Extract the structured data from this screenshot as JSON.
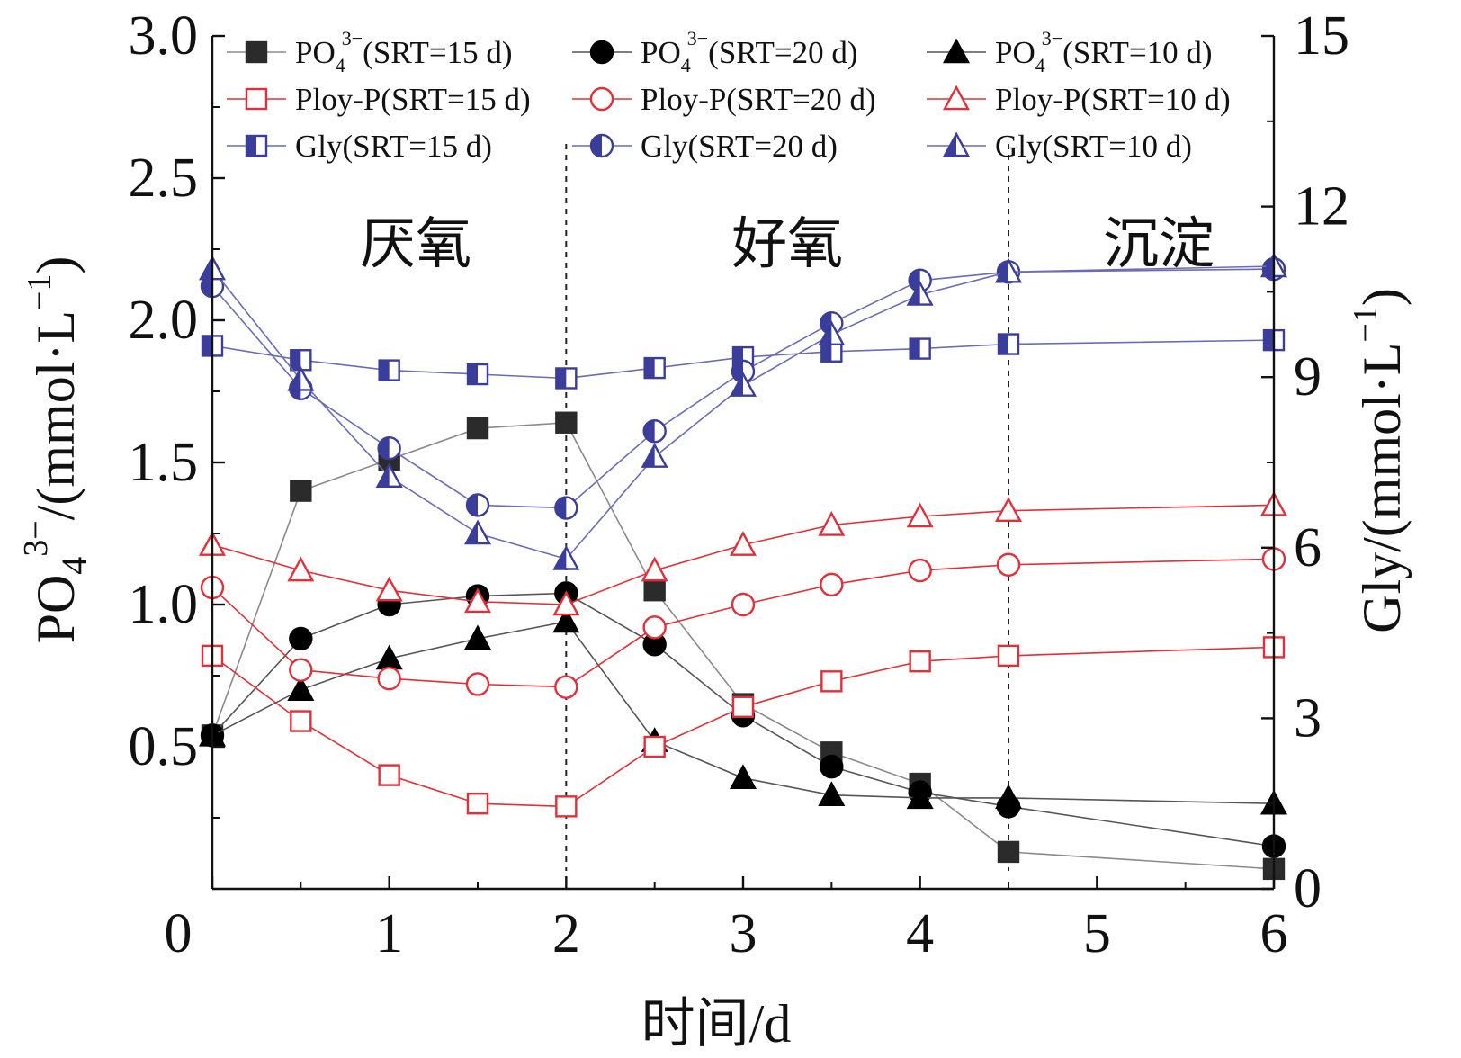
{
  "chart_data": {
    "type": "line",
    "x_axis": {
      "label": "时间/d",
      "range": [
        0,
        6
      ],
      "ticks": [
        0,
        1,
        2,
        3,
        4,
        5,
        6
      ]
    },
    "y_axis_left": {
      "label_main": "PO",
      "label_sub": "4",
      "label_sup": "3−",
      "label_unit": "/(mmol·L",
      "label_unit_sup": "−1",
      "label_close": ")",
      "range": [
        0,
        3.0
      ],
      "ticks": [
        0.5,
        1.0,
        1.5,
        2.0,
        2.5,
        3.0
      ],
      "tick_labels": [
        "0.5",
        "1.0",
        "1.5",
        "2.0",
        "2.5",
        "3.0"
      ]
    },
    "y_axis_right": {
      "label_main": "Gly/(mmol·L",
      "label_sup": "−1",
      "label_close": ")",
      "range": [
        0,
        15
      ],
      "ticks": [
        0,
        3,
        6,
        9,
        12,
        15
      ],
      "tick_labels": [
        "0",
        "3",
        "6",
        "9",
        "12",
        "15"
      ]
    },
    "origin_label": "0",
    "phases": [
      {
        "label": "厌氧",
        "x_center": 1.15
      },
      {
        "label": "好氧",
        "x_center": 3.25
      },
      {
        "label": "沉淀",
        "x_center": 5.35
      }
    ],
    "phase_boundaries": [
      2,
      4.5
    ],
    "series": [
      {
        "name": "PO4 3− (SRT=15 d)",
        "legend_main": "PO",
        "legend_sub": "4",
        "legend_sup": "3−",
        "legend_rest": "(SRT=15 d)",
        "axis": "left",
        "color": "#2b2b2b",
        "line_color": "#8a8a8a",
        "marker": "square-filled",
        "points": [
          [
            0,
            0.54
          ],
          [
            0.5,
            1.4
          ],
          [
            1,
            1.51
          ],
          [
            1.5,
            1.62
          ],
          [
            2,
            1.64
          ],
          [
            2.5,
            1.05
          ],
          [
            3,
            0.65
          ],
          [
            3.5,
            0.48
          ],
          [
            4,
            0.37
          ],
          [
            4.5,
            0.13
          ],
          [
            6,
            0.07
          ]
        ]
      },
      {
        "name": "PO4 3− (SRT=20 d)",
        "legend_main": "PO",
        "legend_sub": "4",
        "legend_sup": "3−",
        "legend_rest": "(SRT=20 d)",
        "axis": "left",
        "color": "#000000",
        "line_color": "#555555",
        "marker": "circle-filled",
        "points": [
          [
            0,
            0.54
          ],
          [
            0.5,
            0.88
          ],
          [
            1,
            1.0
          ],
          [
            1.5,
            1.03
          ],
          [
            2,
            1.04
          ],
          [
            2.5,
            0.86
          ],
          [
            3,
            0.61
          ],
          [
            3.5,
            0.43
          ],
          [
            4,
            0.34
          ],
          [
            4.5,
            0.29
          ],
          [
            6,
            0.15
          ]
        ]
      },
      {
        "name": "PO4 3− (SRT=10 d)",
        "legend_main": "PO",
        "legend_sub": "4",
        "legend_sup": "3−",
        "legend_rest": "(SRT=10 d)",
        "axis": "left",
        "color": "#000000",
        "line_color": "#555555",
        "marker": "triangle-filled",
        "points": [
          [
            0,
            0.54
          ],
          [
            0.5,
            0.7
          ],
          [
            1,
            0.81
          ],
          [
            1.5,
            0.88
          ],
          [
            2,
            0.94
          ],
          [
            2.5,
            0.52
          ],
          [
            3,
            0.39
          ],
          [
            3.5,
            0.33
          ],
          [
            4,
            0.32
          ],
          [
            4.5,
            0.32
          ],
          [
            6,
            0.3
          ]
        ]
      },
      {
        "name": "Ploy-P(SRT=15 d)",
        "legend_main": "Ploy-P(SRT=15 d)",
        "axis": "left",
        "color": "#e0303a",
        "line_color": "#e0303a",
        "marker": "square-open",
        "points": [
          [
            0,
            0.82
          ],
          [
            0.5,
            0.59
          ],
          [
            1,
            0.4
          ],
          [
            1.5,
            0.3
          ],
          [
            2,
            0.29
          ],
          [
            2.5,
            0.5
          ],
          [
            3,
            0.64
          ],
          [
            3.5,
            0.73
          ],
          [
            4,
            0.8
          ],
          [
            4.5,
            0.82
          ],
          [
            6,
            0.85
          ]
        ]
      },
      {
        "name": "Ploy-P(SRT=20 d)",
        "legend_main": "Ploy-P(SRT=20 d)",
        "axis": "left",
        "color": "#e0303a",
        "line_color": "#e0303a",
        "marker": "circle-open",
        "points": [
          [
            0,
            1.06
          ],
          [
            0.5,
            0.77
          ],
          [
            1,
            0.74
          ],
          [
            1.5,
            0.72
          ],
          [
            2,
            0.71
          ],
          [
            2.5,
            0.92
          ],
          [
            3,
            1.0
          ],
          [
            3.5,
            1.07
          ],
          [
            4,
            1.12
          ],
          [
            4.5,
            1.14
          ],
          [
            6,
            1.16
          ]
        ]
      },
      {
        "name": "Ploy-P(SRT=10 d)",
        "legend_main": "Ploy-P(SRT=10 d)",
        "axis": "left",
        "color": "#e0303a",
        "line_color": "#e0303a",
        "marker": "triangle-open",
        "points": [
          [
            0,
            1.21
          ],
          [
            0.5,
            1.12
          ],
          [
            1,
            1.05
          ],
          [
            1.5,
            1.01
          ],
          [
            2,
            1.0
          ],
          [
            2.5,
            1.12
          ],
          [
            3,
            1.21
          ],
          [
            3.5,
            1.28
          ],
          [
            4,
            1.31
          ],
          [
            4.5,
            1.33
          ],
          [
            6,
            1.35
          ]
        ]
      },
      {
        "name": "Gly(SRT=15 d)",
        "legend_main": "Gly(SRT=15 d)",
        "axis": "right",
        "color": "#3a3d9a",
        "line_color": "#6a6cb5",
        "marker": "square-half",
        "points": [
          [
            0,
            9.55
          ],
          [
            0.5,
            9.3
          ],
          [
            1,
            9.12
          ],
          [
            1.5,
            9.05
          ],
          [
            2,
            8.98
          ],
          [
            2.5,
            9.16
          ],
          [
            3,
            9.35
          ],
          [
            3.5,
            9.45
          ],
          [
            4,
            9.5
          ],
          [
            4.5,
            9.58
          ],
          [
            6,
            9.65
          ]
        ]
      },
      {
        "name": "Gly(SRT=20 d)",
        "legend_main": "Gly(SRT=20 d)",
        "axis": "right",
        "color": "#3a3d9a",
        "line_color": "#6a6cb5",
        "marker": "circle-half",
        "points": [
          [
            0,
            10.6
          ],
          [
            0.5,
            8.8
          ],
          [
            1,
            7.75
          ],
          [
            1.5,
            6.75
          ],
          [
            2,
            6.7
          ],
          [
            2.5,
            8.05
          ],
          [
            3,
            9.1
          ],
          [
            3.5,
            9.95
          ],
          [
            4,
            10.7
          ],
          [
            4.5,
            10.85
          ],
          [
            6,
            10.9
          ]
        ]
      },
      {
        "name": "Gly(SRT=10 d)",
        "legend_main": "Gly(SRT=10 d)",
        "axis": "right",
        "color": "#3a3d9a",
        "line_color": "#6a6cb5",
        "marker": "triangle-half",
        "points": [
          [
            0,
            10.9
          ],
          [
            0.5,
            8.95
          ],
          [
            1,
            7.25
          ],
          [
            1.5,
            6.25
          ],
          [
            2,
            5.8
          ],
          [
            2.5,
            7.6
          ],
          [
            3,
            8.85
          ],
          [
            3.5,
            9.75
          ],
          [
            4,
            10.45
          ],
          [
            4.5,
            10.85
          ],
          [
            6,
            10.95
          ]
        ]
      }
    ]
  }
}
